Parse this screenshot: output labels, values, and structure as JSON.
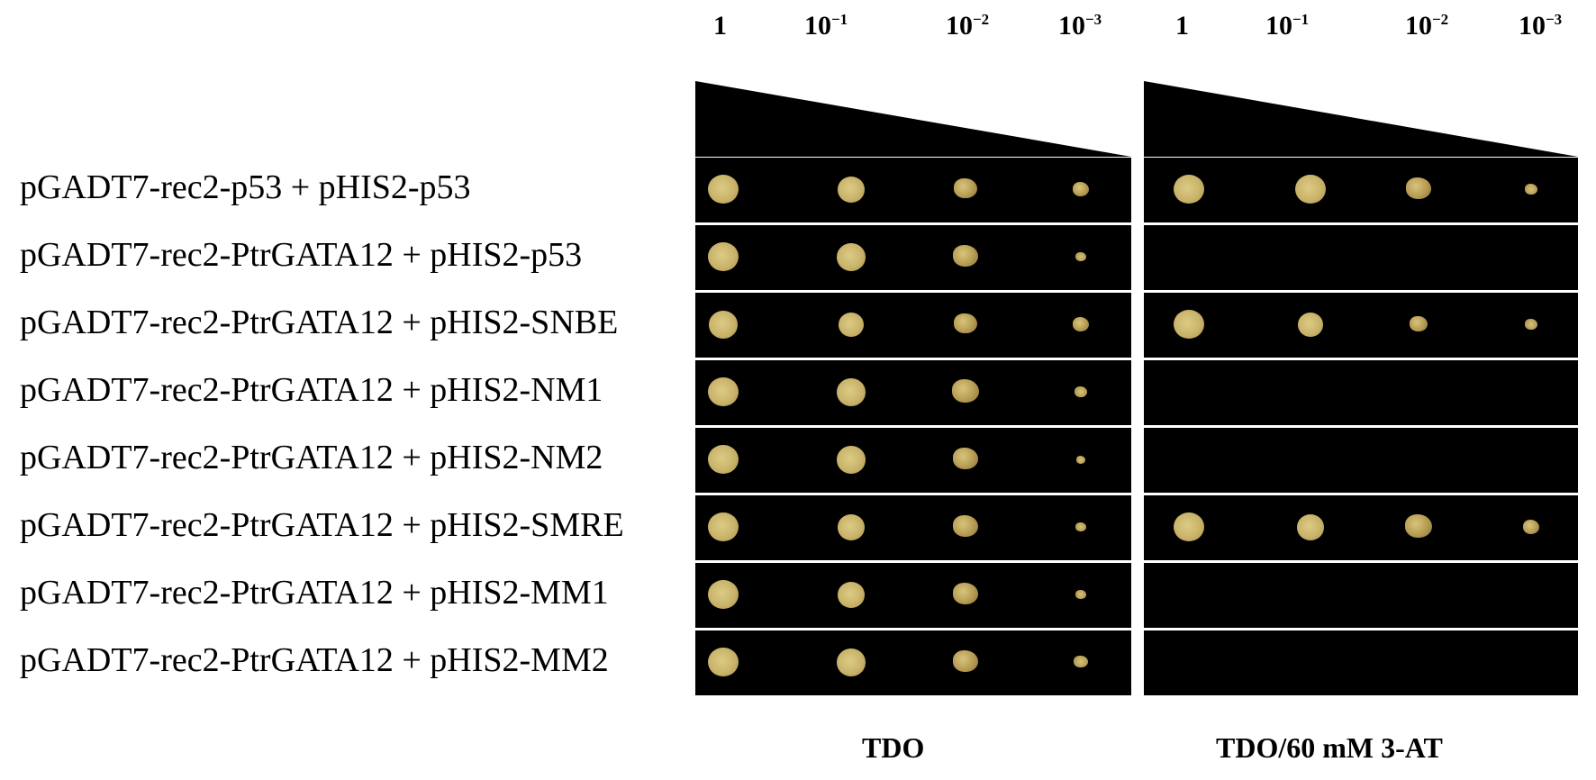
{
  "dilutions": [
    {
      "base": "1",
      "exp": ""
    },
    {
      "base": "10",
      "exp": "−1"
    },
    {
      "base": "10",
      "exp": "−2"
    },
    {
      "base": "10",
      "exp": "−3"
    }
  ],
  "rows": [
    {
      "label": "pGADT7-rec2-p53 + pHIS2-p53",
      "tdo": [
        1.0,
        0.9,
        0.75,
        0.55
      ],
      "tdo_3at": [
        1.0,
        1.0,
        0.85,
        0.4
      ]
    },
    {
      "label": "pGADT7-rec2-PtrGATA12 + pHIS2-p53",
      "tdo": [
        1.0,
        0.95,
        0.8,
        0.35
      ],
      "tdo_3at": [
        0,
        0,
        0,
        0
      ]
    },
    {
      "label": "pGADT7-rec2-PtrGATA12 + pHIS2-SNBE",
      "tdo": [
        0.95,
        0.85,
        0.75,
        0.55
      ],
      "tdo_3at": [
        1.0,
        0.85,
        0.6,
        0.4
      ]
    },
    {
      "label": "pGADT7-rec2-PtrGATA12 + pHIS2-NM1",
      "tdo": [
        1.0,
        0.95,
        0.9,
        0.4
      ],
      "tdo_3at": [
        0,
        0,
        0,
        0
      ]
    },
    {
      "label": "pGADT7-rec2-PtrGATA12 + pHIS2-NM2",
      "tdo": [
        1.0,
        0.95,
        0.8,
        0.3
      ],
      "tdo_3at": [
        0,
        0,
        0,
        0
      ]
    },
    {
      "label": "pGADT7-rec2-PtrGATA12 + pHIS2-SMRE",
      "tdo": [
        1.0,
        0.9,
        0.8,
        0.35
      ],
      "tdo_3at": [
        1.0,
        0.9,
        0.9,
        0.55
      ]
    },
    {
      "label": "pGADT7-rec2-PtrGATA12 + pHIS2-MM1",
      "tdo": [
        1.0,
        0.9,
        0.85,
        0.35
      ],
      "tdo_3at": [
        0,
        0,
        0,
        0
      ]
    },
    {
      "label": "pGADT7-rec2-PtrGATA12 + pHIS2-MM2",
      "tdo": [
        1.0,
        0.95,
        0.85,
        0.45
      ],
      "tdo_3at": [
        0,
        0,
        0,
        0
      ]
    }
  ],
  "media": {
    "left": "TDO",
    "right": "TDO/60 mM 3-AT"
  },
  "colors": {
    "background": "#ffffff",
    "plate": "#000000",
    "colony": "#c9b36a"
  }
}
